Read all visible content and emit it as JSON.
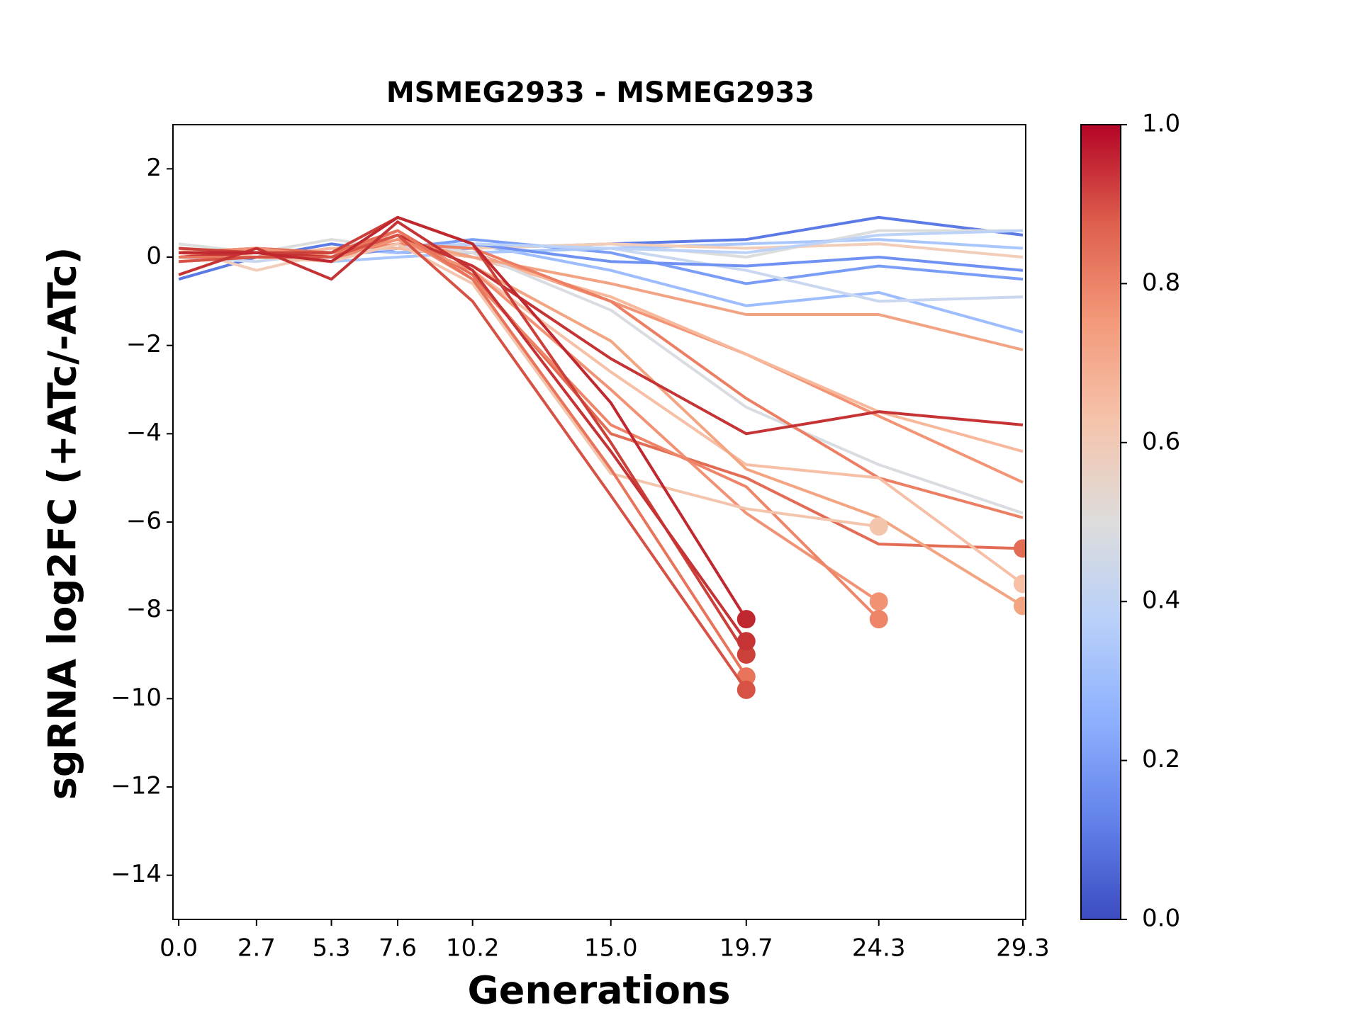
{
  "chart_data": {
    "type": "line",
    "title": "MSMEG2933 - MSMEG2933",
    "x_label": "Generations",
    "y_label": "sgRNA log2FC (+ATc/-ATc)",
    "x": [
      0,
      2.7,
      5.3,
      7.6,
      10.2,
      15.0,
      19.7,
      24.3,
      29.3
    ],
    "xlim": [
      -0.2,
      29.4
    ],
    "xticks": [
      {
        "value": 0,
        "label": "0.0"
      },
      2.7,
      5.3,
      7.6,
      10.2,
      {
        "value": 15,
        "label": "15.0"
      },
      19.7,
      24.3,
      29.3
    ],
    "ylim": [
      -15,
      3
    ],
    "yticks": [
      {
        "value": -14,
        "label": "−14"
      },
      {
        "value": -12,
        "label": "−12"
      },
      {
        "value": -10,
        "label": "−10"
      },
      {
        "value": -8,
        "label": "−8"
      },
      {
        "value": -6,
        "label": "−6"
      },
      {
        "value": -4,
        "label": "−4"
      },
      {
        "value": -2,
        "label": "−2"
      },
      0,
      2
    ],
    "series": [
      {
        "color": "#5b7ae5",
        "values": [
          -0.5,
          0.0,
          0.3,
          0.1,
          0.2,
          0.3,
          0.4,
          0.9,
          0.5
        ]
      },
      {
        "color": "#7a9df8",
        "values": [
          0.0,
          0.1,
          0.0,
          0.2,
          0.4,
          0.1,
          -0.6,
          -0.2,
          -0.5
        ]
      },
      {
        "color": "#9dbdff",
        "values": [
          0.1,
          0.0,
          0.2,
          0.1,
          0.3,
          -0.3,
          -1.1,
          -0.8,
          -1.7
        ]
      },
      {
        "color": "#c9d7f0",
        "values": [
          0.0,
          -0.1,
          0.1,
          0.2,
          0.1,
          0.2,
          -0.3,
          -1.0,
          -0.9
        ]
      },
      {
        "color": "#dcdddd",
        "values": [
          0.3,
          0.1,
          0.4,
          0.2,
          0.2,
          0.3,
          0.0,
          0.6,
          0.6
        ]
      },
      {
        "color": "#aac7fd",
        "values": [
          0.1,
          0.0,
          -0.1,
          0.0,
          0.1,
          0.2,
          0.3,
          0.4,
          0.2
        ]
      },
      {
        "color": "#f1cdba",
        "values": [
          0.2,
          -0.3,
          0.1,
          0.3,
          0.2,
          0.3,
          0.2,
          0.3,
          0.0
        ]
      },
      {
        "color": "#6f92f3",
        "values": [
          0.0,
          0.1,
          0.0,
          0.2,
          0.3,
          -0.1,
          -0.2,
          0.0,
          -0.3
        ]
      },
      {
        "color": "#bcd2f7",
        "values": [
          0.1,
          0.2,
          0.1,
          0.2,
          0.3,
          0.2,
          0.1,
          0.5,
          0.6
        ]
      },
      {
        "color": "#f39475",
        "values": [
          0.0,
          0.1,
          0.0,
          0.3,
          0.1,
          -1.0,
          -2.2,
          -3.6,
          -5.1
        ]
      },
      {
        "color": "#f7b89c",
        "values": [
          0.1,
          0.0,
          0.2,
          0.2,
          0.0,
          -0.9,
          -2.2,
          -3.5,
          -4.4
        ]
      },
      {
        "color": "#d9dce1",
        "values": [
          0.0,
          0.1,
          0.0,
          0.3,
          0.1,
          -1.2,
          -3.4,
          -4.7,
          -5.8
        ]
      },
      {
        "color": "#f2a383",
        "values": [
          0.2,
          0.1,
          0.0,
          0.4,
          0.0,
          -0.6,
          -1.3,
          -1.3,
          -2.1
        ]
      },
      {
        "color": "#ec7f63",
        "values": [
          0.1,
          0.0,
          0.1,
          0.3,
          0.2,
          -1.0,
          -3.2,
          -5.0,
          -5.9
        ]
      },
      {
        "color": "#e36c55",
        "end_marker": true,
        "values": [
          0.1,
          0.2,
          0.1,
          0.6,
          -0.4,
          -4.0,
          -5.0,
          -6.5,
          -6.6
        ]
      },
      {
        "color": "#f6bfa6",
        "end_marker": true,
        "values": [
          0.0,
          0.1,
          0.0,
          0.4,
          -0.3,
          -2.6,
          -4.7,
          -5.0,
          -7.4
        ]
      },
      {
        "color": "#f3a481",
        "end_marker": true,
        "values": [
          -0.1,
          0.0,
          0.0,
          0.5,
          -0.2,
          -1.9,
          -4.8,
          -5.9,
          -7.9
        ]
      },
      {
        "color": "#f29274",
        "end_marker": true,
        "values": [
          0.1,
          0.2,
          0.0,
          0.4,
          -0.3,
          -3.0,
          -5.8,
          -7.8,
          null
        ]
      },
      {
        "color": "#ee8468",
        "end_marker": true,
        "values": [
          0.0,
          0.1,
          -0.1,
          0.5,
          -0.5,
          -3.8,
          -5.2,
          -8.2,
          null
        ]
      },
      {
        "color": "#f4c5ad",
        "end_marker": true,
        "values": [
          0.2,
          0.0,
          -0.1,
          0.3,
          -0.6,
          -4.9,
          -5.7,
          -6.1,
          null
        ]
      },
      {
        "color": "#c53334",
        "values": [
          0.0,
          0.1,
          0.0,
          0.5,
          -0.2,
          -2.3,
          -4.0,
          -3.5,
          -3.8
        ]
      },
      {
        "color": "#e7745b",
        "end_marker": true,
        "values": [
          0.0,
          0.0,
          0.0,
          0.6,
          -0.5,
          -4.8,
          -9.5,
          null,
          null
        ]
      },
      {
        "color": "#d65244",
        "end_marker": true,
        "values": [
          -0.1,
          0.0,
          0.0,
          0.5,
          -1.0,
          -5.4,
          -9.8,
          null,
          null
        ]
      },
      {
        "color": "#cc403a",
        "end_marker": true,
        "values": [
          0.2,
          0.1,
          0.1,
          0.9,
          0.3,
          -4.2,
          -9.0,
          null,
          null
        ]
      },
      {
        "color": "#c53334",
        "end_marker": true,
        "values": [
          -0.4,
          0.2,
          -0.5,
          0.8,
          -0.3,
          -4.4,
          -8.7,
          null,
          null
        ]
      },
      {
        "color": "#c0282f",
        "end_marker": true,
        "values": [
          0.1,
          0.1,
          -0.1,
          0.9,
          0.3,
          -3.3,
          -8.2,
          null,
          null
        ]
      }
    ],
    "colorbar": {
      "lim": [
        0,
        1
      ],
      "ticks": [
        {
          "value": 0,
          "label": "0.0"
        },
        {
          "value": 0.2,
          "label": "0.2"
        },
        {
          "value": 0.4,
          "label": "0.4"
        },
        {
          "value": 0.6,
          "label": "0.6"
        },
        {
          "value": 0.8,
          "label": "0.8"
        },
        {
          "value": 1,
          "label": "1.0"
        }
      ],
      "colors": [
        "#3b4cc0",
        "#6282ea",
        "#8db0fe",
        "#b8d0f9",
        "#dddcdc",
        "#f5c4ac",
        "#f49a7b",
        "#de604d",
        "#b40426"
      ]
    }
  }
}
